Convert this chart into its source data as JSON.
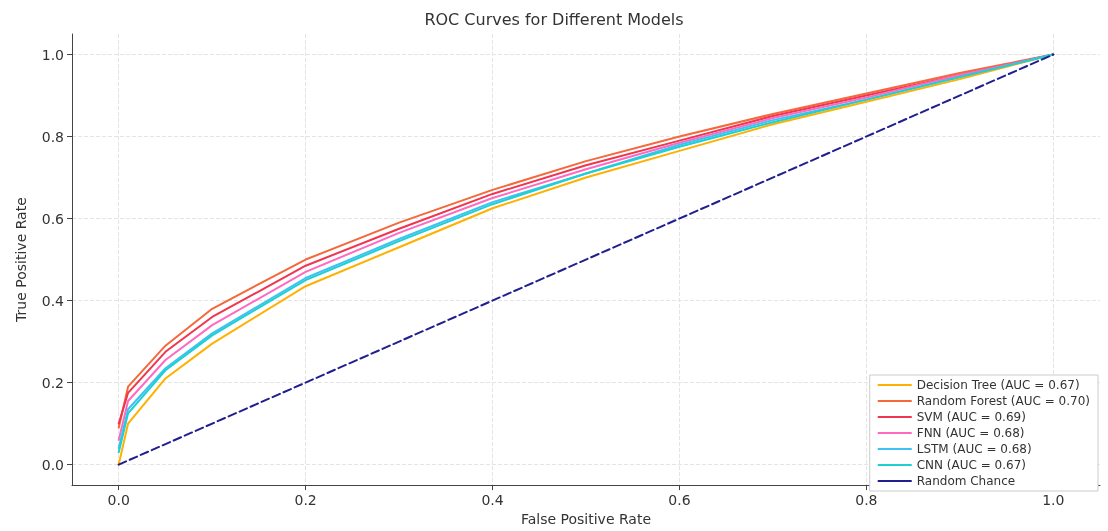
{
  "chart_data": {
    "type": "line",
    "title": "ROC Curves for Different Models",
    "xlabel": "False Positive Rate",
    "ylabel": "True Positive Rate",
    "x": [
      0,
      0.01,
      0.05,
      0.1,
      0.2,
      0.3,
      0.4,
      0.5,
      0.6,
      0.7,
      0.8,
      0.9,
      1
    ],
    "series": [
      {
        "name": "Decision Tree (AUC = 0.67)",
        "color": "#ffb000",
        "values": [
          0,
          0.1,
          0.21,
          0.295,
          0.435,
          0.53,
          0.625,
          0.7,
          0.765,
          0.83,
          0.885,
          0.94,
          1
        ]
      },
      {
        "name": "Random Forest (AUC = 0.70)",
        "color": "#f4683a",
        "values": [
          0.09,
          0.19,
          0.29,
          0.38,
          0.5,
          0.59,
          0.67,
          0.74,
          0.8,
          0.855,
          0.905,
          0.955,
          1
        ]
      },
      {
        "name": "SVM (AUC = 0.69)",
        "color": "#f0354f",
        "values": [
          0.1,
          0.175,
          0.275,
          0.36,
          0.485,
          0.575,
          0.66,
          0.73,
          0.79,
          0.85,
          0.9,
          0.95,
          1
        ]
      },
      {
        "name": "FNN (AUC = 0.68)",
        "color": "#ff69c0",
        "values": [
          0.06,
          0.155,
          0.255,
          0.34,
          0.47,
          0.565,
          0.65,
          0.72,
          0.785,
          0.845,
          0.895,
          0.95,
          1
        ]
      },
      {
        "name": "LSTM (AUC = 0.68)",
        "color": "#3fc1f5",
        "values": [
          0.04,
          0.135,
          0.235,
          0.32,
          0.455,
          0.55,
          0.64,
          0.71,
          0.78,
          0.84,
          0.89,
          0.945,
          1
        ]
      },
      {
        "name": "CNN (AUC = 0.67)",
        "color": "#1ed0cf",
        "values": [
          0.03,
          0.125,
          0.23,
          0.315,
          0.45,
          0.545,
          0.635,
          0.71,
          0.775,
          0.835,
          0.89,
          0.945,
          1
        ]
      },
      {
        "name": "Random Chance",
        "color": "#1f1f8f",
        "x": [
          0,
          1
        ],
        "values": [
          0,
          1
        ],
        "line_style": "dashed"
      }
    ],
    "xlim": [
      -0.05,
      1.05
    ],
    "ylim": [
      -0.05,
      1.05
    ],
    "xticks": [
      {
        "value": 0,
        "label": "0.0"
      },
      {
        "value": 0.2,
        "label": "0.2"
      },
      {
        "value": 0.4,
        "label": "0.4"
      },
      {
        "value": 0.6,
        "label": "0.6"
      },
      {
        "value": 0.8,
        "label": "0.8"
      },
      {
        "value": 1,
        "label": "1.0"
      }
    ],
    "yticks": [
      {
        "value": 0,
        "label": "0.0"
      },
      {
        "value": 0.2,
        "label": "0.2"
      },
      {
        "value": 0.4,
        "label": "0.4"
      },
      {
        "value": 0.6,
        "label": "0.6"
      },
      {
        "value": 0.8,
        "label": "0.8"
      },
      {
        "value": 1,
        "label": "1.0"
      }
    ],
    "grid": true,
    "legend": "bottom right",
    "marker": "none",
    "line_style": "solid"
  }
}
